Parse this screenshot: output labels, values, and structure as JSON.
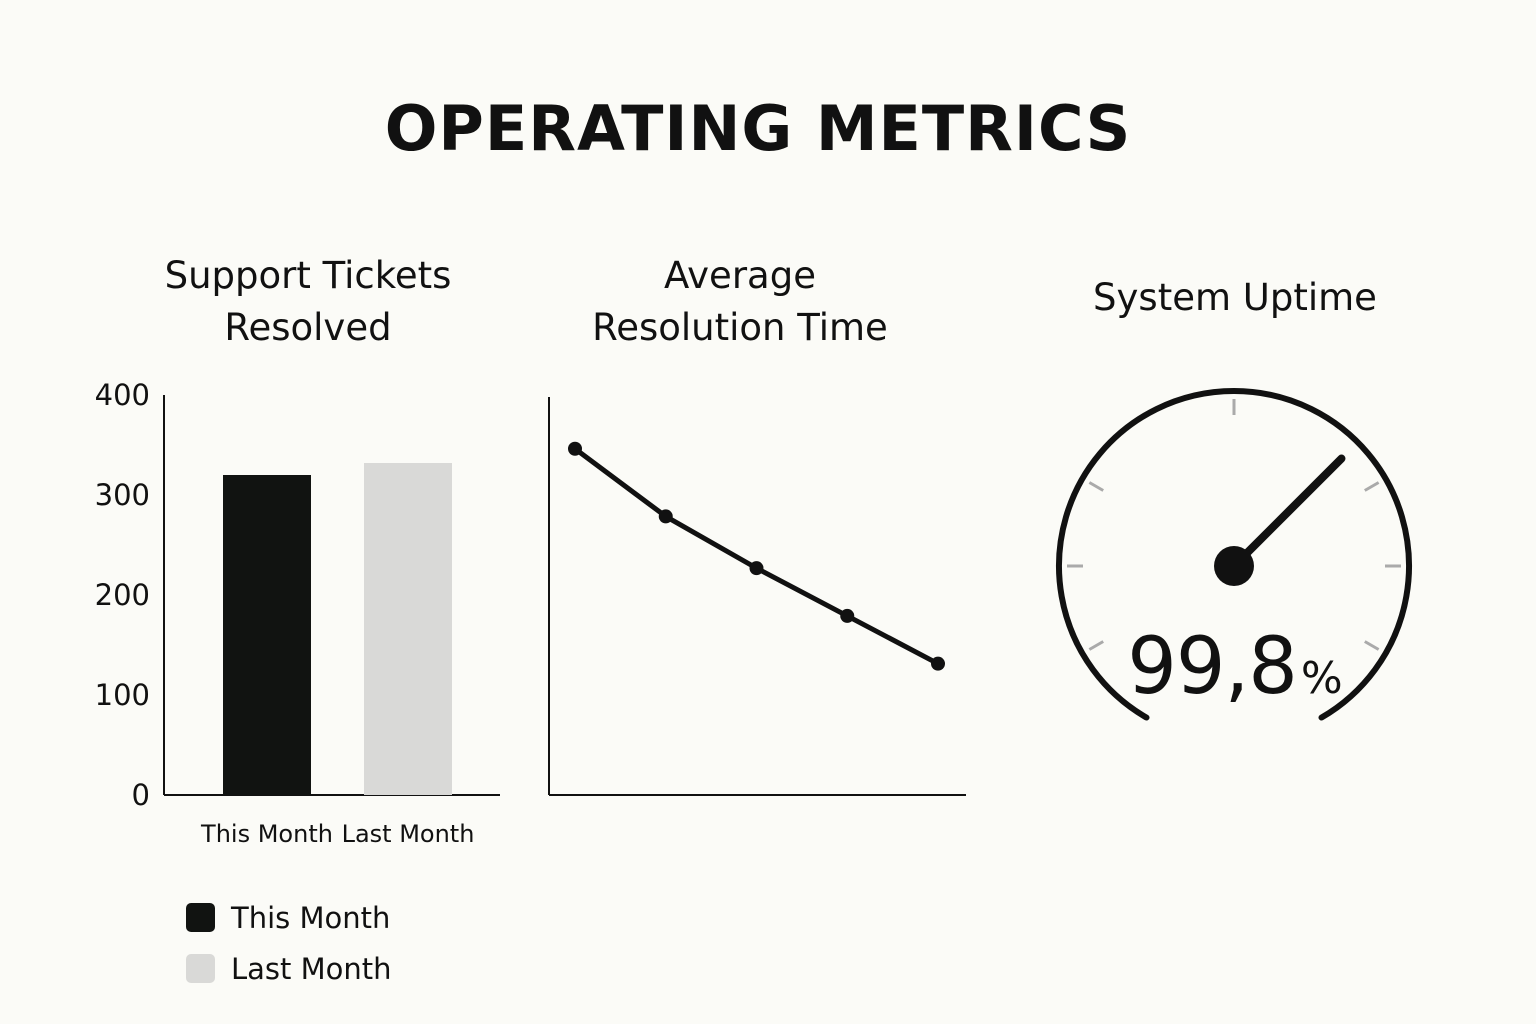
{
  "page": {
    "title": "OPERATING METRICS"
  },
  "panels": {
    "tickets": {
      "title_line1": "Support Tickets",
      "title_line2": "Resolved"
    },
    "resolution": {
      "title_line1": "Average",
      "title_line2": "Resolution Time"
    },
    "uptime": {
      "title": "System Uptime"
    }
  },
  "chart_data": [
    {
      "type": "bar",
      "title": "Support Tickets Resolved",
      "categories": [
        "This Month",
        "Last Month"
      ],
      "values": [
        320,
        332
      ],
      "ylim": [
        0,
        400
      ],
      "yticks": [
        "400",
        "300",
        "200",
        "100",
        "0"
      ],
      "colors": [
        "#111311",
        "#d9d9d7"
      ],
      "grid": false,
      "legend": {
        "placement": "bottom-left",
        "entries": [
          {
            "label": "This Month",
            "color": "#111311"
          },
          {
            "label": "Last Month",
            "color": "#d9d9d7"
          }
        ]
      }
    },
    {
      "type": "line",
      "title": "Average Resolution Time",
      "x": [
        1,
        2,
        3,
        4,
        5
      ],
      "values": [
        8.7,
        7.0,
        5.7,
        4.5,
        3.3
      ],
      "ylim": [
        0,
        10
      ],
      "color": "#111111",
      "grid": false
    },
    {
      "type": "gauge",
      "title": "System Uptime",
      "value": 99.8,
      "value_text": "99,8",
      "unit": "%",
      "color": "#111111",
      "tick_color": "#aaaaaa"
    }
  ]
}
